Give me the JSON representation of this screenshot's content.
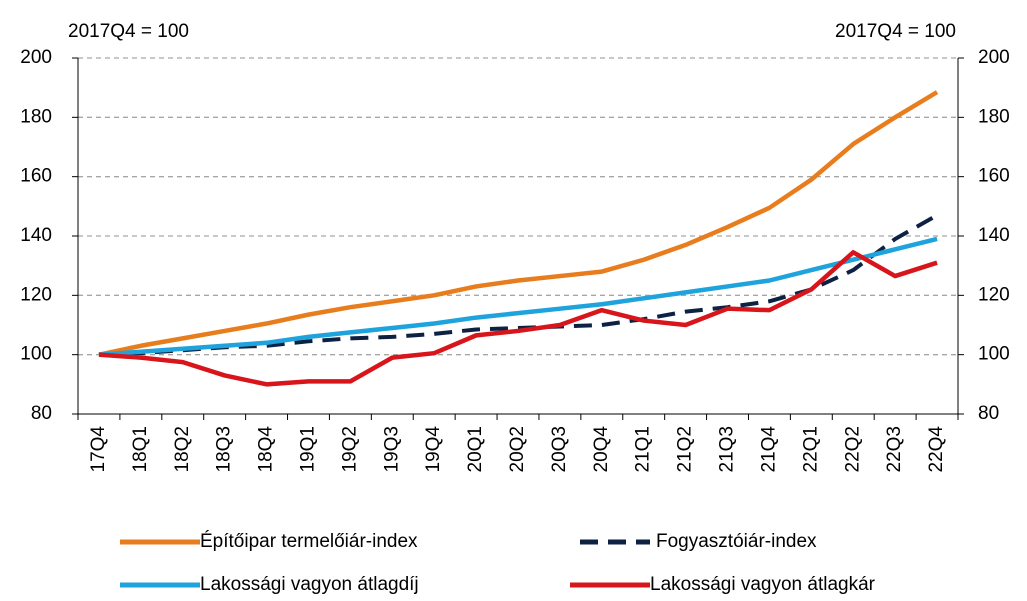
{
  "chart_data": {
    "type": "line",
    "y_unit_label": "2017Q4 = 100",
    "y2_unit_label": "2017Q4 = 100",
    "categories": [
      "17Q4",
      "18Q1",
      "18Q2",
      "18Q3",
      "18Q4",
      "19Q1",
      "19Q2",
      "19Q3",
      "19Q4",
      "20Q1",
      "20Q2",
      "20Q3",
      "20Q4",
      "21Q1",
      "21Q2",
      "21Q3",
      "21Q4",
      "22Q1",
      "22Q2",
      "22Q3",
      "22Q4"
    ],
    "series": [
      {
        "name": "Építőipar termelőiár-index",
        "color": "#e87d1e",
        "dash": false,
        "values": [
          100,
          103,
          105.5,
          108,
          110.5,
          113.5,
          116,
          118,
          120,
          123,
          125,
          126.5,
          128,
          132,
          137,
          143,
          149.5,
          159,
          171,
          180,
          188.5
        ]
      },
      {
        "name": "Fogyasztóiár-index",
        "color": "#0d2242",
        "dash": true,
        "values": [
          100,
          100.5,
          101.5,
          102.5,
          103,
          104.5,
          105.5,
          106,
          107,
          108.5,
          109,
          109.5,
          110,
          112,
          114.5,
          116,
          118,
          122,
          128.5,
          139,
          147
        ]
      },
      {
        "name": "Lakossági vagyon átlagdíj",
        "color": "#1fa3dc",
        "dash": false,
        "values": [
          100,
          101,
          102,
          103,
          104,
          106,
          107.5,
          109,
          110.5,
          112.5,
          114,
          115.5,
          117,
          119,
          121,
          123,
          125,
          128.5,
          132,
          135.5,
          139
        ]
      },
      {
        "name": "Lakossági vagyon átlagkár",
        "color": "#d7151b",
        "dash": false,
        "values": [
          100,
          99,
          97.5,
          93,
          90,
          91,
          91,
          99,
          100.5,
          106.5,
          108,
          110,
          115,
          111.5,
          110,
          115.5,
          115,
          122,
          134.5,
          126.5,
          131
        ]
      }
    ],
    "ylim": [
      80,
      200
    ],
    "yticks": [
      80,
      100,
      120,
      140,
      160,
      180,
      200
    ],
    "y2lim": [
      80,
      200
    ],
    "y2ticks": [
      80,
      100,
      120,
      140,
      160,
      180,
      200
    ],
    "grid": true
  }
}
